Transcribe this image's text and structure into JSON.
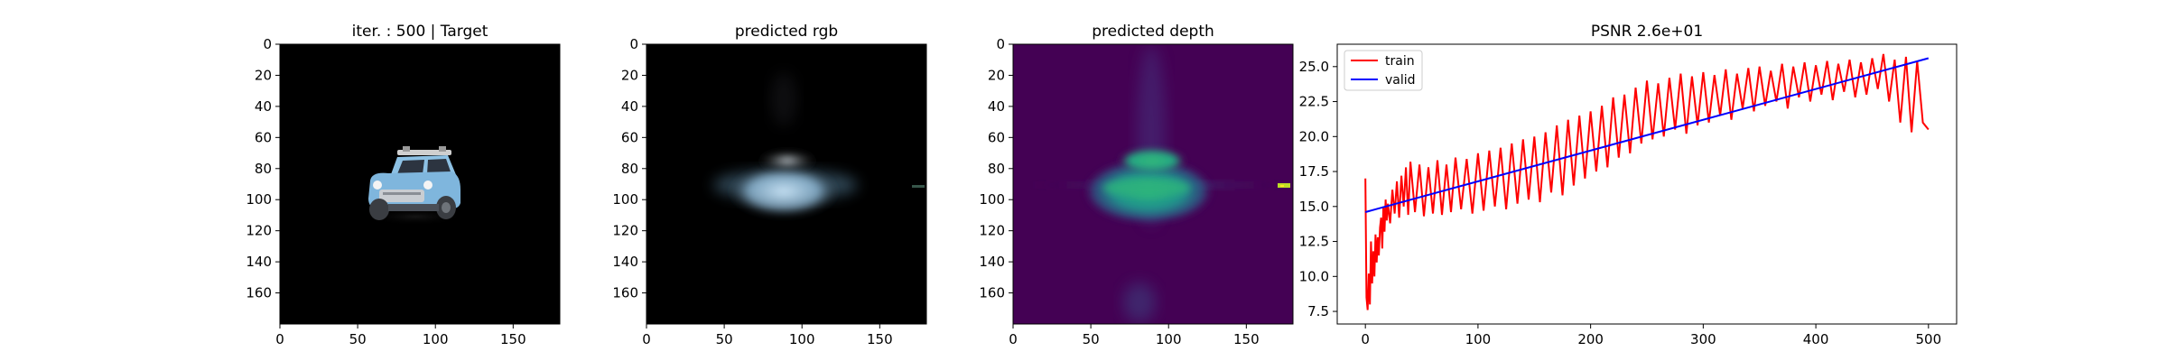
{
  "chart_data": [
    {
      "type": "image",
      "title": "iter. : 500 | Target",
      "x_ticks": [
        0,
        50,
        100,
        150
      ],
      "y_ticks": [
        0,
        20,
        40,
        60,
        80,
        100,
        120,
        140,
        160
      ],
      "xlim": [
        0,
        180
      ],
      "ylim": [
        180,
        0
      ],
      "content": "toy car on black background",
      "colors": {
        "background": "#000000",
        "car_body": "#7fb6dd",
        "car_dark": "#4a4f57",
        "roof_rack": "#d8d8d8"
      }
    },
    {
      "type": "image",
      "title": "predicted rgb",
      "x_ticks": [
        0,
        50,
        100,
        150
      ],
      "y_ticks": [
        0,
        20,
        40,
        60,
        80,
        100,
        120,
        140,
        160
      ],
      "xlim": [
        0,
        180
      ],
      "ylim": [
        180,
        0
      ],
      "content": "blurry light-blue blob on black background",
      "colors": {
        "background": "#000000",
        "blob": "#bfe0f5"
      }
    },
    {
      "type": "heatmap",
      "title": "predicted depth",
      "x_ticks": [
        0,
        50,
        100,
        150
      ],
      "y_ticks": [
        0,
        20,
        40,
        60,
        80,
        100,
        120,
        140,
        160
      ],
      "xlim": [
        0,
        180
      ],
      "ylim": [
        180,
        0
      ],
      "colormap": "viridis",
      "colors": {
        "background": "#440154",
        "mid": "#2a788e",
        "high": "#22a884",
        "peak": "#bddf26"
      }
    },
    {
      "type": "line",
      "title": "PSNR 2.6e+01",
      "xlim": [
        -25,
        525
      ],
      "ylim": [
        6.6,
        26.6
      ],
      "x_ticks": [
        0,
        100,
        200,
        300,
        400,
        500
      ],
      "y_ticks": [
        7.5,
        10.0,
        12.5,
        15.0,
        17.5,
        20.0,
        22.5,
        25.0
      ],
      "legend": "top-left",
      "series": [
        {
          "name": "train",
          "color": "#ff0000",
          "x": [
            0,
            1,
            2,
            3,
            4,
            5,
            6,
            7,
            8,
            9,
            10,
            11,
            12,
            13,
            14,
            15,
            16,
            17,
            18,
            19,
            20,
            22,
            24,
            26,
            28,
            30,
            32,
            34,
            36,
            38,
            40,
            44,
            48,
            52,
            56,
            60,
            64,
            68,
            72,
            76,
            80,
            85,
            90,
            95,
            100,
            105,
            110,
            115,
            120,
            125,
            130,
            135,
            140,
            145,
            150,
            155,
            160,
            165,
            170,
            175,
            180,
            185,
            190,
            195,
            200,
            205,
            210,
            215,
            220,
            225,
            230,
            235,
            240,
            245,
            250,
            255,
            260,
            265,
            270,
            275,
            280,
            285,
            290,
            295,
            300,
            305,
            310,
            315,
            320,
            325,
            330,
            335,
            340,
            345,
            350,
            355,
            360,
            365,
            370,
            375,
            380,
            385,
            390,
            395,
            400,
            405,
            410,
            415,
            420,
            425,
            430,
            435,
            440,
            445,
            450,
            455,
            460,
            465,
            470,
            475,
            480,
            485,
            490,
            495,
            500
          ],
          "y": [
            17.0,
            8.5,
            7.6,
            10.2,
            8.0,
            12.5,
            9.5,
            11.8,
            10.0,
            13.0,
            11.0,
            12.8,
            11.5,
            13.5,
            14.2,
            12.0,
            15.0,
            13.2,
            15.5,
            14.0,
            15.2,
            13.8,
            16.2,
            14.5,
            16.8,
            14.2,
            17.2,
            15.0,
            17.8,
            14.4,
            18.2,
            14.6,
            18.0,
            14.3,
            17.8,
            14.5,
            18.3,
            14.4,
            18.0,
            14.6,
            18.5,
            14.8,
            18.4,
            14.5,
            18.8,
            14.7,
            19.0,
            15.0,
            19.2,
            14.8,
            19.5,
            15.2,
            19.8,
            15.5,
            20.0,
            15.3,
            20.3,
            16.0,
            20.8,
            15.8,
            21.2,
            16.5,
            21.5,
            17.0,
            21.8,
            17.5,
            22.2,
            17.8,
            22.8,
            18.5,
            23.0,
            18.8,
            23.5,
            19.5,
            24.0,
            19.8,
            23.8,
            20.0,
            24.2,
            20.5,
            24.5,
            20.2,
            24.3,
            20.8,
            24.6,
            21.0,
            24.4,
            21.5,
            24.8,
            21.2,
            24.5,
            22.0,
            24.9,
            21.8,
            25.0,
            22.2,
            24.7,
            22.5,
            25.2,
            22.0,
            25.0,
            22.8,
            25.3,
            22.5,
            25.1,
            23.0,
            25.4,
            22.6,
            25.2,
            23.2,
            25.5,
            22.8,
            25.3,
            23.0,
            25.6,
            23.4,
            25.9,
            22.5,
            25.5,
            21.0,
            25.7,
            20.3,
            25.4,
            21.0,
            20.5
          ]
        },
        {
          "name": "valid",
          "color": "#0000ff",
          "x": [
            0,
            500
          ],
          "y": [
            14.6,
            25.6
          ]
        }
      ]
    }
  ]
}
